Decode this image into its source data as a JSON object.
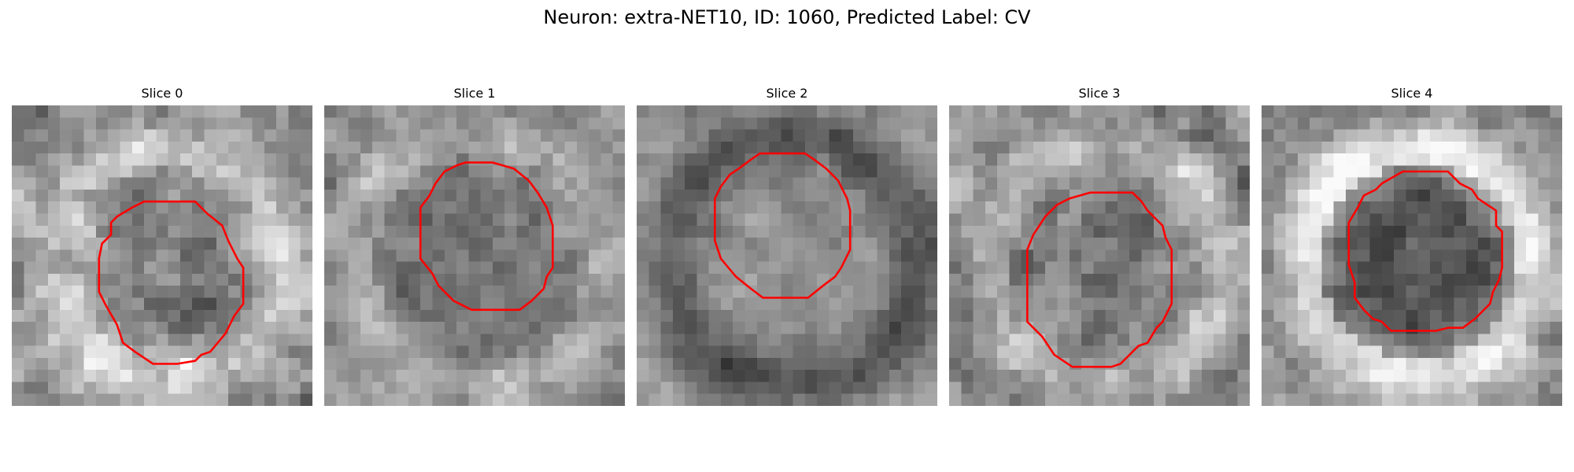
{
  "figure": {
    "title": "Neuron: extra-NET10, ID: 1060, Predicted Label: CV"
  },
  "colors": {
    "contour": "#ff0000",
    "colormap": "grayscale"
  },
  "slices": [
    {
      "title": "Slice 0",
      "image_description_tone": "mixed",
      "contour_label": "roi-contour"
    },
    {
      "title": "Slice 1",
      "image_description_tone": "mid-gray",
      "contour_label": "roi-contour"
    },
    {
      "title": "Slice 2",
      "image_description_tone": "mid-gray",
      "contour_label": "roi-contour"
    },
    {
      "title": "Slice 3",
      "image_description_tone": "mixed",
      "contour_label": "roi-contour"
    },
    {
      "title": "Slice 4",
      "image_description_tone": "bright-ring",
      "contour_label": "roi-contour"
    }
  ]
}
